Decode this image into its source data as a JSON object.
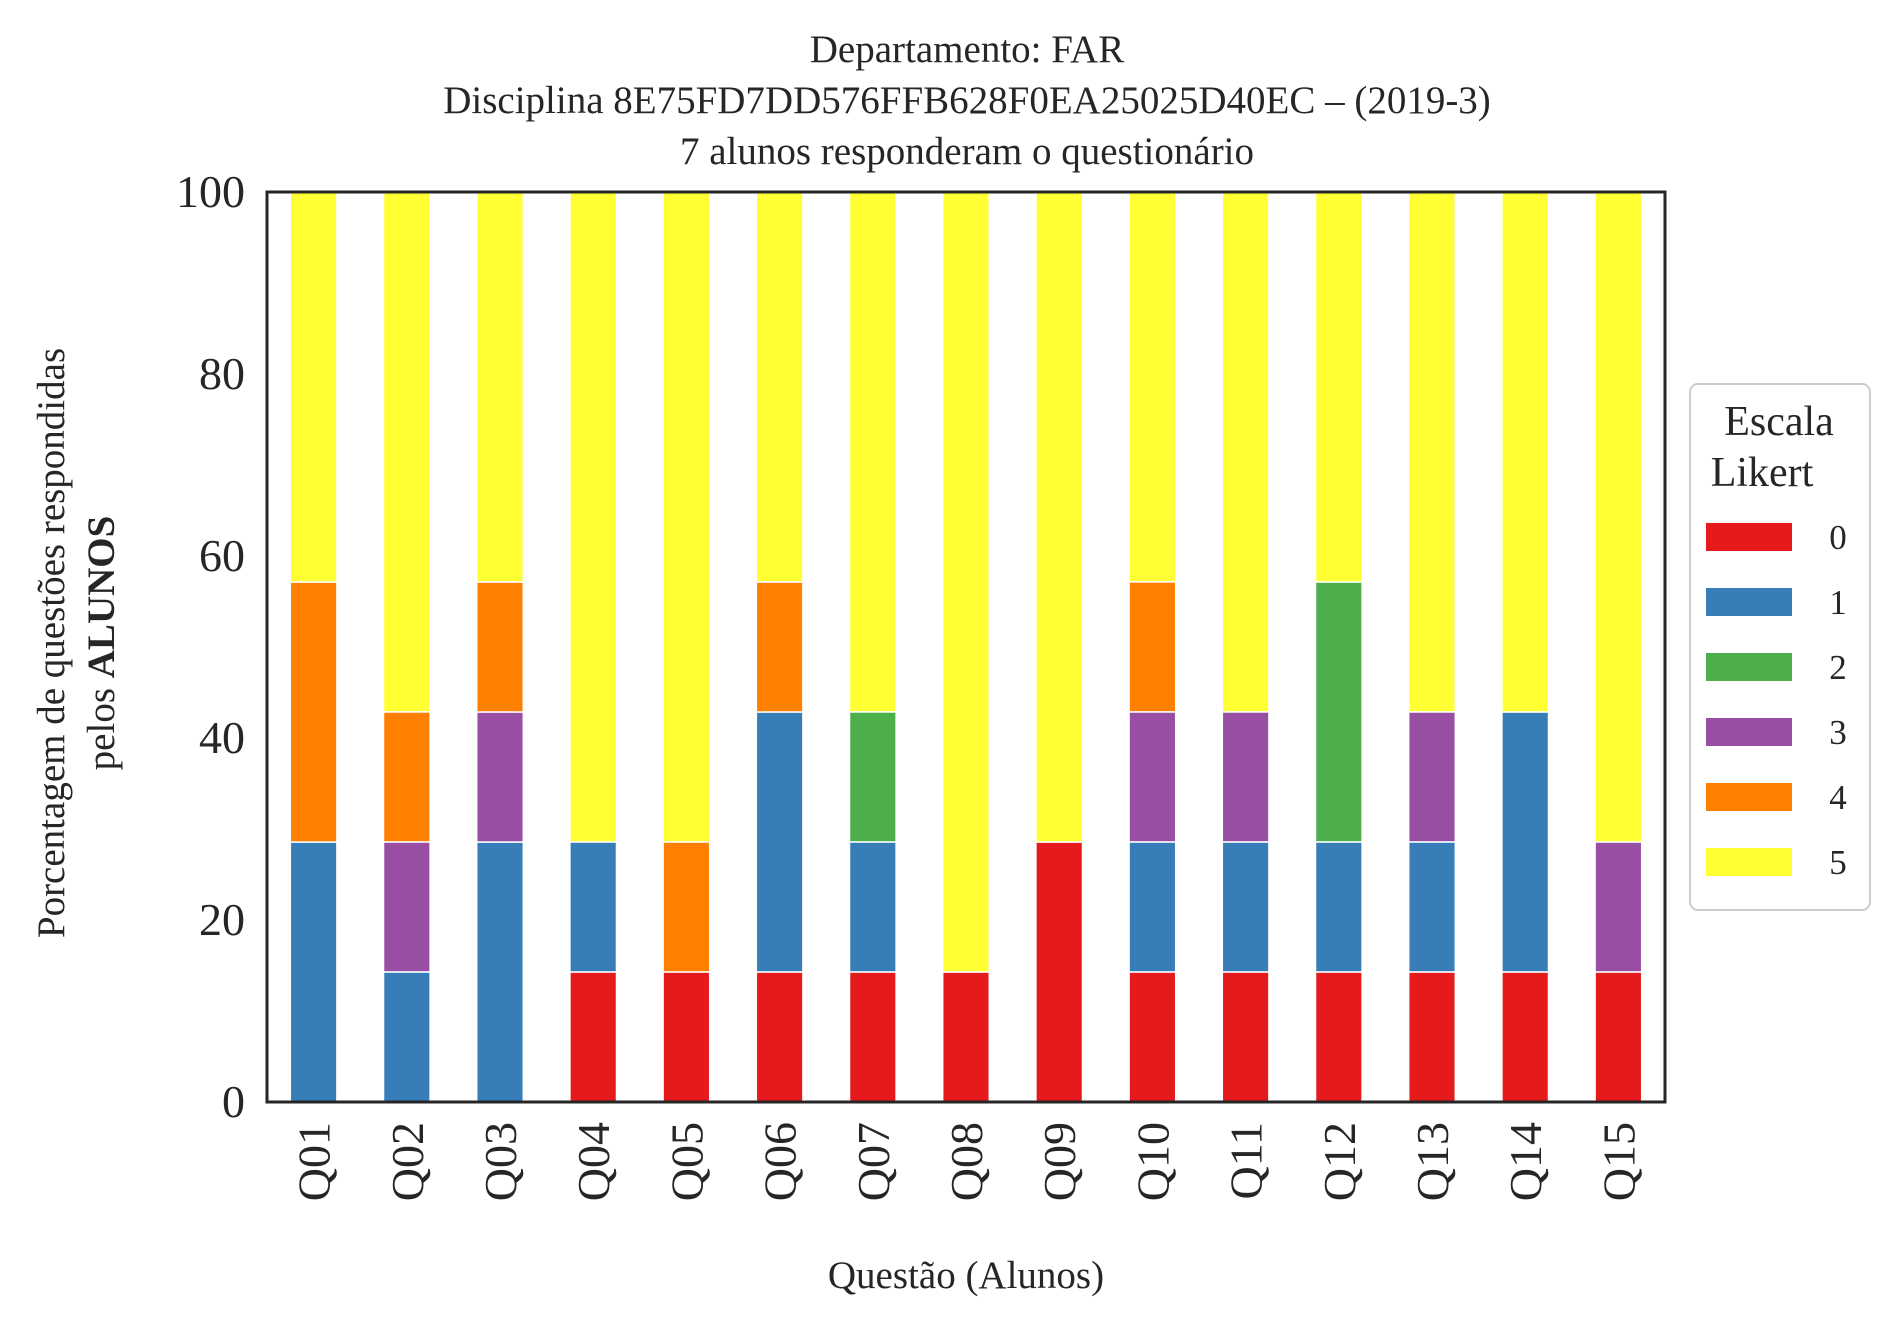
{
  "chart_data": {
    "type": "bar",
    "stacked": true,
    "title": [
      "Departamento: FAR",
      "Disciplina 8E75FD7DD576FFB628F0EA25025D40EC – (2019-3)",
      "7 alunos responderam o questionário"
    ],
    "xlabel": "Questão (Alunos)",
    "ylabel": {
      "line1": "Porcentagem de questões respondidas",
      "line2_prefix": "pelos ",
      "line2_bold": "ALUNOS"
    },
    "ylim": [
      0,
      100
    ],
    "yticks": [
      0,
      20,
      40,
      60,
      80,
      100
    ],
    "grid": false,
    "categories": [
      "Q01",
      "Q02",
      "Q03",
      "Q04",
      "Q05",
      "Q06",
      "Q07",
      "Q08",
      "Q09",
      "Q10",
      "Q11",
      "Q12",
      "Q13",
      "Q14",
      "Q15"
    ],
    "series": [
      {
        "name": "0",
        "color": "#e41a1c",
        "values": [
          0,
          0,
          0,
          14.29,
          14.29,
          14.29,
          14.29,
          14.29,
          28.57,
          14.29,
          14.29,
          14.29,
          14.29,
          14.29,
          14.29
        ]
      },
      {
        "name": "1",
        "color": "#377eb8",
        "values": [
          28.57,
          14.29,
          28.57,
          14.29,
          0,
          28.57,
          14.29,
          0,
          0,
          14.29,
          14.29,
          14.29,
          14.29,
          28.57,
          0
        ]
      },
      {
        "name": "2",
        "color": "#4daf4a",
        "values": [
          0,
          0,
          0,
          0,
          0,
          0,
          14.29,
          0,
          0,
          0,
          0,
          28.57,
          0,
          0,
          0
        ]
      },
      {
        "name": "3",
        "color": "#984ea3",
        "values": [
          0,
          14.29,
          14.29,
          0,
          0,
          0,
          0,
          0,
          0,
          14.29,
          14.29,
          0,
          14.29,
          0,
          14.29
        ]
      },
      {
        "name": "4",
        "color": "#ff7f00",
        "values": [
          28.57,
          14.29,
          14.29,
          0,
          14.29,
          14.29,
          0,
          0,
          0,
          14.29,
          0,
          0,
          0,
          0,
          0
        ]
      },
      {
        "name": "5",
        "color": "#ffff33",
        "values": [
          42.86,
          57.14,
          42.86,
          71.43,
          71.43,
          42.86,
          57.14,
          85.71,
          71.43,
          42.86,
          57.14,
          42.86,
          57.14,
          57.14,
          71.43
        ]
      }
    ],
    "legend": {
      "title": [
        "Escala",
        "Likert"
      ],
      "placement": "right"
    }
  }
}
